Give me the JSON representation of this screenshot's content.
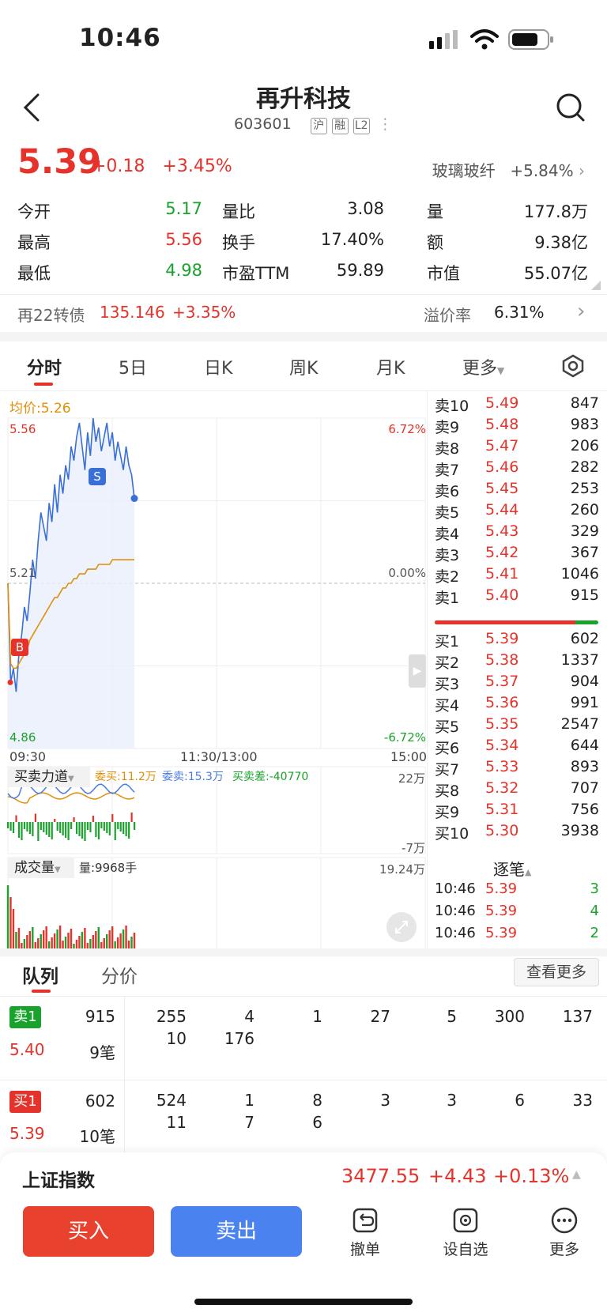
{
  "status_bar": {
    "time": "10:46"
  },
  "header": {
    "title": "再升科技",
    "code": "603601",
    "tags": [
      "沪",
      "融",
      "L2"
    ]
  },
  "quote": {
    "price": "5.39",
    "change": "+0.18",
    "change_pct": "+3.45%",
    "sector_name": "玻璃玻纤",
    "sector_pct": "+5.84%",
    "rows": [
      [
        {
          "label": "今开",
          "value": "5.17",
          "color": "green"
        },
        {
          "label": "量比",
          "value": "3.08"
        },
        {
          "label": "量",
          "value": "177.8万"
        }
      ],
      [
        {
          "label": "最高",
          "value": "5.56",
          "color": "red"
        },
        {
          "label": "换手",
          "value": "17.40%"
        },
        {
          "label": "额",
          "value": "9.38亿"
        }
      ],
      [
        {
          "label": "最低",
          "value": "4.98",
          "color": "green"
        },
        {
          "label": "市盈TTM",
          "value": "59.89"
        },
        {
          "label": "市值",
          "value": "55.07亿"
        }
      ]
    ],
    "bond": {
      "name": "再22转债",
      "price": "135.146",
      "pct": "+3.35%",
      "premium_label": "溢价率",
      "premium": "6.31%"
    }
  },
  "tabs": [
    "分时",
    "5日",
    "日K",
    "周K",
    "月K",
    "更多"
  ],
  "chart": {
    "avg_label": "均价:5.26",
    "y_high": "5.56",
    "y_mid": "5.21",
    "y_low": "4.86",
    "pct_high": "6.72%",
    "pct_mid": "0.00%",
    "pct_low": "-6.72%",
    "x_labels": [
      "09:30",
      "11:30/13:00",
      "15:00"
    ],
    "marker_b": "B",
    "marker_s": "S",
    "force": {
      "title": "买卖力道",
      "buy": "委买:11.2万",
      "sell": "委卖:15.3万",
      "diff": "买卖差:-40770",
      "top": "22万",
      "bottom": "-7万"
    },
    "volume": {
      "title": "成交量",
      "value": "量:9968手",
      "max": "19.24万"
    }
  },
  "chart_data": {
    "type": "line",
    "title": "",
    "ylim": [
      4.86,
      5.56
    ],
    "series": [
      {
        "name": "",
        "values": [
          5.21,
          5.0,
          5.03,
          4.98,
          5.06,
          5.1,
          5.16,
          5.13,
          5.19,
          5.26,
          5.22,
          5.3,
          5.36,
          5.33,
          5.3,
          5.38,
          5.34,
          5.42,
          5.36,
          5.44,
          5.4,
          5.46,
          5.43,
          5.5,
          5.47,
          5.52,
          5.55,
          5.5,
          5.45,
          5.53,
          5.48,
          5.56,
          5.51,
          5.54,
          5.49,
          5.52,
          5.55,
          5.5,
          5.53,
          5.47,
          5.51,
          5.48,
          5.45,
          5.5,
          5.46,
          5.44,
          5.39
        ]
      },
      {
        "name": "",
        "values": [
          5.21,
          5.04,
          5.03,
          5.03,
          5.04,
          5.05,
          5.06,
          5.07,
          5.09,
          5.1,
          5.11,
          5.12,
          5.13,
          5.14,
          5.15,
          5.16,
          5.17,
          5.18,
          5.18,
          5.19,
          5.2,
          5.2,
          5.21,
          5.21,
          5.22,
          5.22,
          5.23,
          5.23,
          5.23,
          5.24,
          5.24,
          5.24,
          5.24,
          5.25,
          5.25,
          5.25,
          5.25,
          5.25,
          5.26,
          5.26,
          5.26,
          5.26,
          5.26,
          5.26,
          5.26,
          5.26,
          5.26
        ]
      }
    ]
  },
  "orderbook": {
    "sells": [
      {
        "label": "卖10",
        "price": "5.49",
        "vol": "847"
      },
      {
        "label": "卖9",
        "price": "5.48",
        "vol": "983"
      },
      {
        "label": "卖8",
        "price": "5.47",
        "vol": "206"
      },
      {
        "label": "卖7",
        "price": "5.46",
        "vol": "282"
      },
      {
        "label": "卖6",
        "price": "5.45",
        "vol": "253"
      },
      {
        "label": "卖5",
        "price": "5.44",
        "vol": "260"
      },
      {
        "label": "卖4",
        "price": "5.43",
        "vol": "329"
      },
      {
        "label": "卖3",
        "price": "5.42",
        "vol": "367"
      },
      {
        "label": "卖2",
        "price": "5.41",
        "vol": "1046"
      },
      {
        "label": "卖1",
        "price": "5.40",
        "vol": "915"
      }
    ],
    "buys": [
      {
        "label": "买1",
        "price": "5.39",
        "vol": "602"
      },
      {
        "label": "买2",
        "price": "5.38",
        "vol": "1337"
      },
      {
        "label": "买3",
        "price": "5.37",
        "vol": "904"
      },
      {
        "label": "买4",
        "price": "5.36",
        "vol": "991"
      },
      {
        "label": "买5",
        "price": "5.35",
        "vol": "2547"
      },
      {
        "label": "买6",
        "price": "5.34",
        "vol": "644"
      },
      {
        "label": "买7",
        "price": "5.33",
        "vol": "893"
      },
      {
        "label": "买8",
        "price": "5.32",
        "vol": "707"
      },
      {
        "label": "买9",
        "price": "5.31",
        "vol": "756"
      },
      {
        "label": "买10",
        "price": "5.30",
        "vol": "3938"
      }
    ],
    "buy_ratio": 0.86,
    "ticks_title": "逐笔",
    "ticks": [
      {
        "time": "10:46",
        "price": "5.39",
        "vol": "3"
      },
      {
        "time": "10:46",
        "price": "5.39",
        "vol": "4"
      },
      {
        "time": "10:46",
        "price": "5.39",
        "vol": "2"
      }
    ]
  },
  "queue": {
    "tabs": [
      "队列",
      "分价"
    ],
    "more": "查看更多",
    "sell": {
      "label": "卖1",
      "total": "915",
      "price": "5.40",
      "count": "9笔",
      "row1": [
        "255",
        "4",
        "1",
        "27",
        "5",
        "300",
        "137"
      ],
      "row2": [
        "10",
        "176"
      ]
    },
    "buy": {
      "label": "买1",
      "total": "602",
      "price": "5.39",
      "count": "10笔",
      "row1": [
        "524",
        "1",
        "8",
        "3",
        "3",
        "6",
        "33"
      ],
      "row2": [
        "11",
        "7",
        "6"
      ]
    }
  },
  "index": {
    "name": "上证指数",
    "value": "3477.55",
    "change": "+4.43",
    "pct": "+0.13%"
  },
  "actions": {
    "buy": "买入",
    "sell": "卖出",
    "cancel": "撤单",
    "watch": "设自选",
    "more": "更多"
  }
}
